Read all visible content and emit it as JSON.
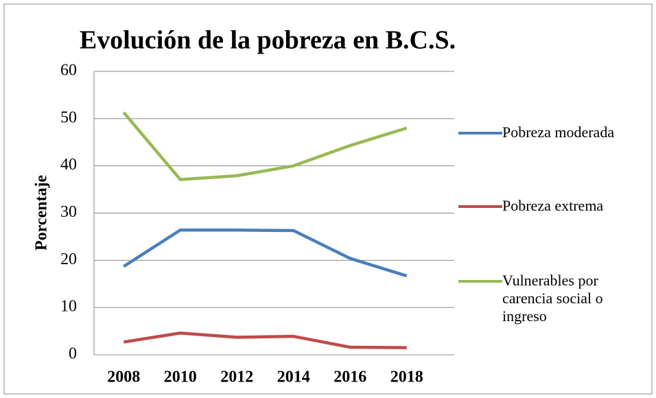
{
  "chart_data": {
    "type": "line",
    "title": "Evolución de la pobreza en B.C.S.",
    "y_label": "Porcentaje",
    "categories": [
      "2008",
      "2010",
      "2012",
      "2014",
      "2016",
      "2018"
    ],
    "series": [
      {
        "name": "Pobreza moderada",
        "color": "#4a7ebb",
        "values": [
          18.7,
          26.4,
          26.4,
          26.3,
          20.4,
          16.7
        ]
      },
      {
        "name": "Pobreza extrema",
        "color": "#be4b48",
        "values": [
          2.7,
          4.6,
          3.7,
          3.9,
          1.6,
          1.5
        ]
      },
      {
        "name": "Vulnerables por carencia social o ingreso",
        "color": "#98b954",
        "values": [
          51.3,
          37.1,
          37.9,
          40.0,
          44.3,
          48.0
        ]
      }
    ],
    "ylim": [
      0,
      60
    ],
    "yticks": [
      0,
      10,
      20,
      30,
      40,
      50,
      60
    ],
    "grid": true,
    "legend": "right"
  }
}
